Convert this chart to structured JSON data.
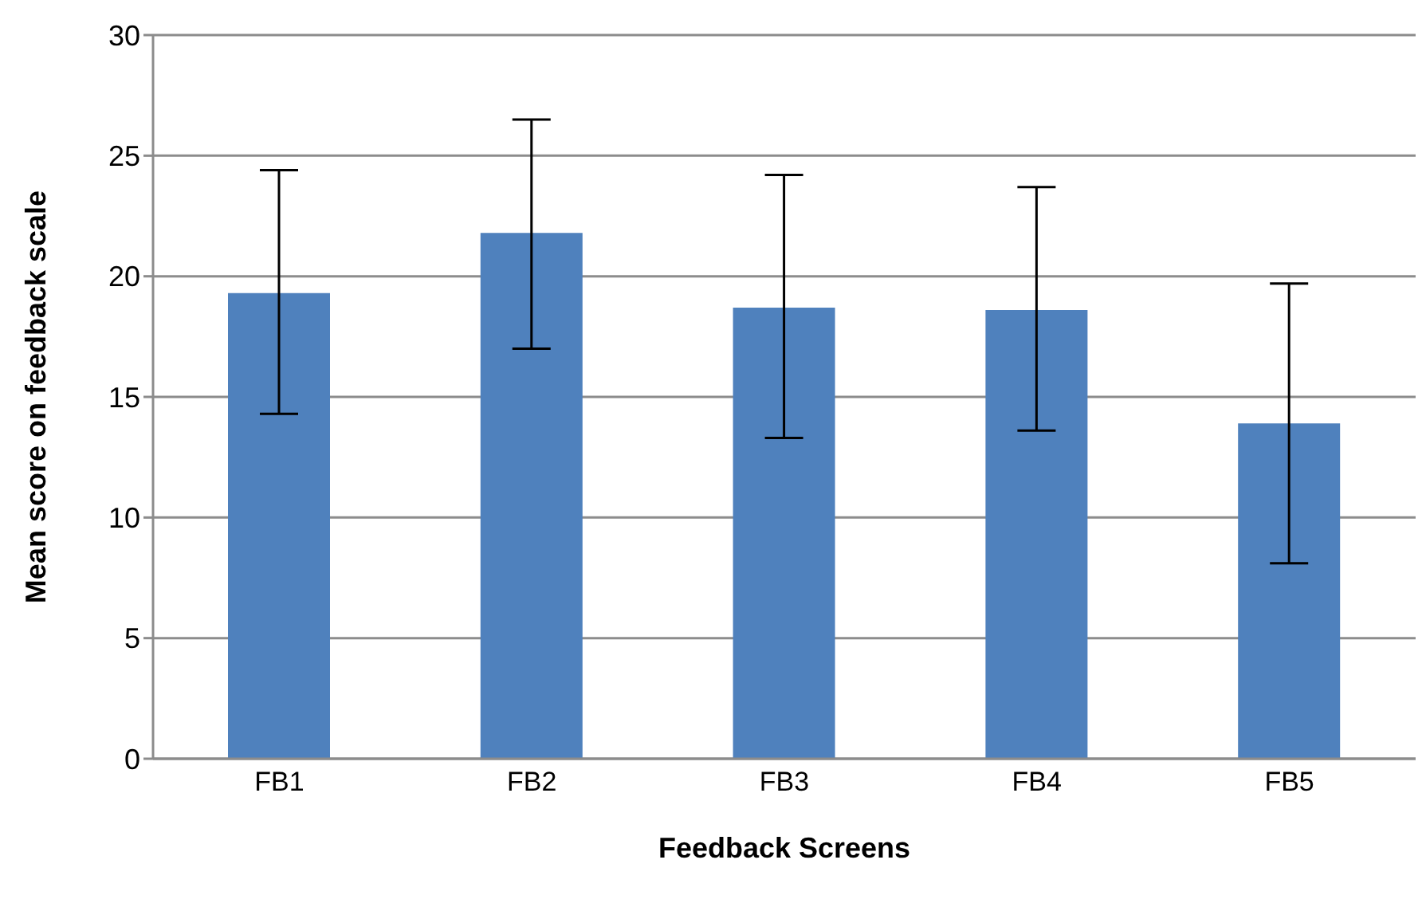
{
  "chart_data": {
    "type": "bar",
    "xlabel": "Feedback Screens",
    "ylabel": "Mean score on feedback scale",
    "categories": [
      "FB1",
      "FB2",
      "FB3",
      "FB4",
      "FB5"
    ],
    "values": [
      19.3,
      21.8,
      18.7,
      18.6,
      13.9
    ],
    "errors": [
      [
        14.3,
        24.4
      ],
      [
        17.0,
        26.5
      ],
      [
        13.3,
        24.2
      ],
      [
        13.6,
        23.7
      ],
      [
        8.1,
        19.7
      ]
    ],
    "color": "#4f81bd",
    "ylim": [
      0,
      30
    ],
    "yticks": [
      0,
      5,
      10,
      15,
      20,
      25,
      30
    ],
    "grid": "y"
  }
}
